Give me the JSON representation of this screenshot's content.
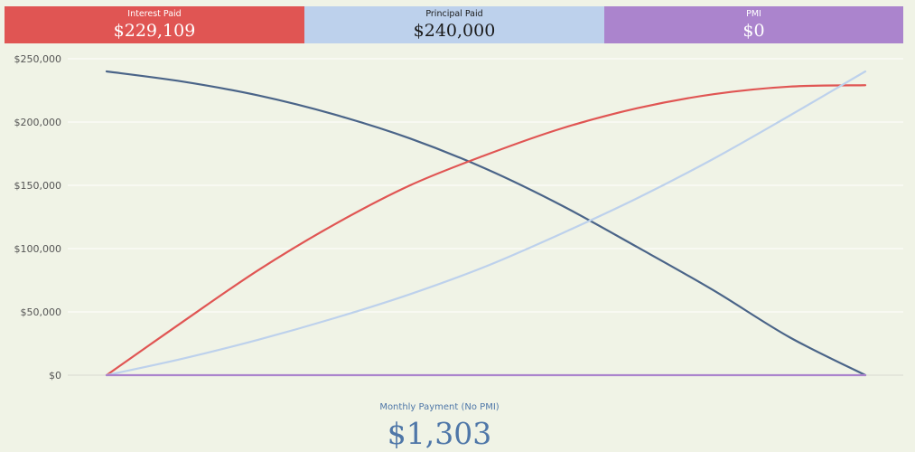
{
  "tiles": {
    "interest": {
      "label": "Interest Paid",
      "value": "$229,109",
      "color": "#e05553"
    },
    "principal": {
      "label": "Principal Paid",
      "value": "$240,000",
      "color": "#bdd1ec"
    },
    "pmi": {
      "label": "PMI",
      "value": "$0",
      "color": "#ab84cd"
    }
  },
  "footer": {
    "label": "Monthly Payment (No PMI)",
    "value": "$1,303"
  },
  "chart_data": {
    "type": "line",
    "ylim": [
      0,
      250000
    ],
    "yticks": [
      0,
      50000,
      100000,
      150000,
      200000,
      250000
    ],
    "ytick_labels": [
      "$0",
      "$50,000",
      "$100,000",
      "$150,000",
      "$200,000",
      "$250,000"
    ],
    "xlim": [
      0,
      1
    ],
    "grid": true,
    "x": [
      0,
      0.1,
      0.2,
      0.3,
      0.4,
      0.5,
      0.6,
      0.7,
      0.8,
      0.9,
      1.0
    ],
    "series": [
      {
        "color": "#4a6488",
        "values": [
          240000,
          232000,
          221000,
          206000,
          187000,
          163000,
          134000,
          101000,
          67000,
          30000,
          0
        ]
      },
      {
        "color": "#e05553",
        "values": [
          0,
          42000,
          83000,
          119000,
          150000,
          174000,
          195000,
          211000,
          222000,
          228000,
          229109
        ]
      },
      {
        "color": "#bdd1ec",
        "values": [
          0,
          13000,
          28000,
          45000,
          64000,
          86000,
          112000,
          140000,
          171000,
          205000,
          240000
        ]
      },
      {
        "color": "#ab84cd",
        "values": [
          0,
          0,
          0,
          0,
          0,
          0,
          0,
          0,
          0,
          0,
          0
        ]
      }
    ]
  }
}
